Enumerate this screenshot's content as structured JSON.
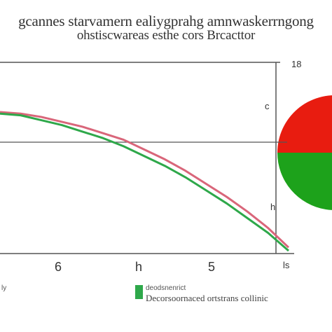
{
  "chart_data": [
    {
      "type": "line",
      "title": "gcannes starvamern ealiygprahg amnwaskerrngong",
      "subtitle": "ohstiscwareas esthe cors Brcacttor",
      "x_tick_labels": [
        "6",
        "h",
        "5",
        "ls"
      ],
      "right_tick_labels": [
        "18",
        "c",
        "h"
      ],
      "corner_label": "ly",
      "legend_text": "Decorsoornaced ortstrans collinic",
      "legend_small": "deodsnenrict",
      "x": [
        0,
        0.5,
        1,
        1.5,
        2,
        2.5,
        3,
        3.5,
        4,
        4.5,
        5,
        5.5,
        6,
        6.5,
        7
      ],
      "x_range": [
        0,
        7
      ],
      "y_range": [
        0,
        1
      ],
      "grid": false,
      "series": [
        {
          "color": "#d9667a",
          "values": [
            0.85,
            0.84,
            0.82,
            0.79,
            0.76,
            0.72,
            0.68,
            0.62,
            0.56,
            0.49,
            0.41,
            0.33,
            0.24,
            0.14,
            0.02
          ]
        },
        {
          "color": "#2ea84a",
          "values": [
            0.84,
            0.83,
            0.8,
            0.77,
            0.73,
            0.69,
            0.64,
            0.58,
            0.52,
            0.45,
            0.37,
            0.29,
            0.2,
            0.11,
            0.0
          ]
        }
      ]
    },
    {
      "type": "pie",
      "slices": [
        {
          "value": 55,
          "color": "#e81c10"
        },
        {
          "value": 45,
          "color": "#1da21b"
        }
      ]
    }
  ]
}
